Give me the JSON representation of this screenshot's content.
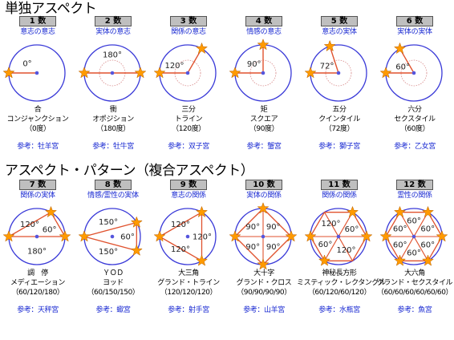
{
  "sections": [
    {
      "title": "単独アスペクト",
      "items": [
        {
          "num": "1 数",
          "relation": "意志の意志",
          "angles": [
            180,
            180
          ],
          "star_angles": [
            180,
            180
          ],
          "hub": false,
          "labels": [
            {
              "text": "0°",
              "dir": 135
            }
          ],
          "label_dist": 17,
          "ring": false,
          "lines": [
            "合",
            "コンジャンクション",
            "（0度）"
          ],
          "ref": "参考：牡羊宮"
        },
        {
          "num": "2 数",
          "relation": "実体の意志",
          "angles": [
            180,
            0
          ],
          "star_angles": [
            180,
            0
          ],
          "hub": false,
          "labels": [
            {
              "text": "180°",
              "dir": 90
            }
          ],
          "label_dist": 23,
          "ring": true,
          "lines": [
            "衝",
            "オポジション",
            "（180度）"
          ],
          "ref": "参考：牡牛宮"
        },
        {
          "num": "3 数",
          "relation": "関係の意志",
          "angles": [
            180,
            60
          ],
          "star_angles": [
            180,
            60
          ],
          "hub": false,
          "labels": [
            {
              "text": "120°",
              "dir": 150
            }
          ],
          "label_dist": 19,
          "ring": true,
          "lines": [
            "三分",
            "トライン",
            "（120度）"
          ],
          "ref": "参考：双子宮"
        },
        {
          "num": "4 数",
          "relation": "情感の意志",
          "angles": [
            180,
            90
          ],
          "star_angles": [
            180,
            90
          ],
          "hub": false,
          "labels": [
            {
              "text": "90°",
              "dir": 135
            }
          ],
          "label_dist": 16,
          "ring": true,
          "lines": [
            "矩",
            "スクエア",
            "（90度）"
          ],
          "ref": "参考：蟹宮"
        },
        {
          "num": "5 数",
          "relation": "意志の実体",
          "angles": [
            180,
            108
          ],
          "star_angles": [
            180,
            108
          ],
          "hub": false,
          "labels": [
            {
              "text": "72°",
              "dir": 148
            }
          ],
          "label_dist": 17,
          "ring": true,
          "lines": [
            "五分",
            "クインタイル",
            "（72度）"
          ],
          "ref": "参考：獅子宮"
        },
        {
          "num": "6 数",
          "relation": "実体の実体",
          "angles": [
            180,
            120
          ],
          "star_angles": [
            180,
            120
          ],
          "hub": false,
          "labels": [
            {
              "text": "60°",
              "dir": 150
            }
          ],
          "label_dist": 16,
          "ring": true,
          "lines": [
            "六分",
            "セクスタイル",
            "（60度）"
          ],
          "ref": "参考：乙女宮"
        }
      ]
    },
    {
      "title": "アスペクト・パターン（複合アスペクト）",
      "items": [
        {
          "num": "7 数",
          "relation": "関係の実体",
          "angles": [
            180,
            60,
            0
          ],
          "star_angles": [
            180,
            60,
            0
          ],
          "hub": false,
          "labels": [
            {
              "text": "120°",
              "dir": 120
            },
            {
              "text": "60°",
              "dir": 30
            },
            {
              "text": "180°",
              "dir": 270
            }
          ],
          "label_dist": 18,
          "ring": false,
          "lines": [
            "調　停",
            "メディエーション",
            "（60/120/180）"
          ],
          "ref": "参考：天秤宮"
        },
        {
          "num": "8 数",
          "relation": "情感/霊性の実体",
          "angles": [
            180,
            30,
            330
          ],
          "star_angles": [
            180,
            30,
            330
          ],
          "hub": false,
          "labels": [
            {
              "text": "150°",
              "dir": 105
            },
            {
              "text": "60°",
              "dir": 0
            },
            {
              "text": "150°",
              "dir": 255
            }
          ],
          "label_dist": 19,
          "ring": false,
          "lines": [
            "ＹＯＤ",
            "ヨッド",
            "（60/150/150）"
          ],
          "ref": "参考：蠍宮"
        },
        {
          "num": "9 数",
          "relation": "意志の関係",
          "angles": [
            180,
            60,
            300
          ],
          "star_angles": [
            180,
            60,
            300
          ],
          "hub": false,
          "labels": [
            {
              "text": "120°",
              "dir": 120
            },
            {
              "text": "120°",
              "dir": 0
            },
            {
              "text": "120°",
              "dir": 240
            }
          ],
          "label_dist": 18,
          "ring": false,
          "lines": [
            "大三角",
            "グランド・トライン",
            "（120/120/120）"
          ],
          "ref": "参考：射手宮"
        },
        {
          "num": "10 数",
          "relation": "実体の関係",
          "angles": [
            180,
            90,
            0,
            270
          ],
          "star_angles": [
            180,
            90,
            0,
            270
          ],
          "hub": true,
          "labels": [
            {
              "text": "90°",
              "dir": 135
            },
            {
              "text": "90°",
              "dir": 45
            },
            {
              "text": "90°",
              "dir": 315
            },
            {
              "text": "90°",
              "dir": 225
            }
          ],
          "label_dist": 18,
          "ring": false,
          "lines": [
            "大十字",
            "グランド・クロス",
            "（90/90/90/90）"
          ],
          "ref": "参考：山羊宮"
        },
        {
          "num": "11 数",
          "relation": "関係の関係",
          "angles": [
            180,
            120,
            60,
            0,
            300,
            240
          ],
          "star_angles": [
            180,
            60,
            0,
            240
          ],
          "hub": true,
          "labels": [
            {
              "text": "120°",
              "dir": 120
            },
            {
              "text": "60°",
              "dir": 30
            },
            {
              "text": "60°",
              "dir": 210
            },
            {
              "text": "120°",
              "dir": 300
            }
          ],
          "label_dist": 19,
          "ring": false,
          "lines": [
            "神秘長方形",
            "ミスティック・レクタングル",
            "（60/120/60/120）"
          ],
          "ref": "参考：水瓶宮"
        },
        {
          "num": "12 数",
          "relation": "霊性の関係",
          "angles": [
            180,
            120,
            60,
            0,
            300,
            240
          ],
          "star_angles": [
            180,
            120,
            60,
            0,
            300,
            240
          ],
          "hub": true,
          "labels": [
            {
              "text": "60°",
              "dir": 150
            },
            {
              "text": "60°",
              "dir": 90
            },
            {
              "text": "60°",
              "dir": 30
            },
            {
              "text": "60°",
              "dir": 330
            },
            {
              "text": "60°",
              "dir": 270
            },
            {
              "text": "60°",
              "dir": 210
            }
          ],
          "label_dist": 20,
          "ring": false,
          "lines": [
            "大六角",
            "グランド・セクスタイル",
            "（60/60/60/60/60/60）"
          ],
          "ref": "参考：魚宮"
        }
      ]
    }
  ],
  "colors": {
    "circle": "#3a3ad8",
    "center": "#5555dd",
    "line": "#e0522e",
    "star": "#ff9a00",
    "star_edge": "#b86000",
    "ring": "#d88a8a",
    "relation": "#1a2ad2"
  }
}
